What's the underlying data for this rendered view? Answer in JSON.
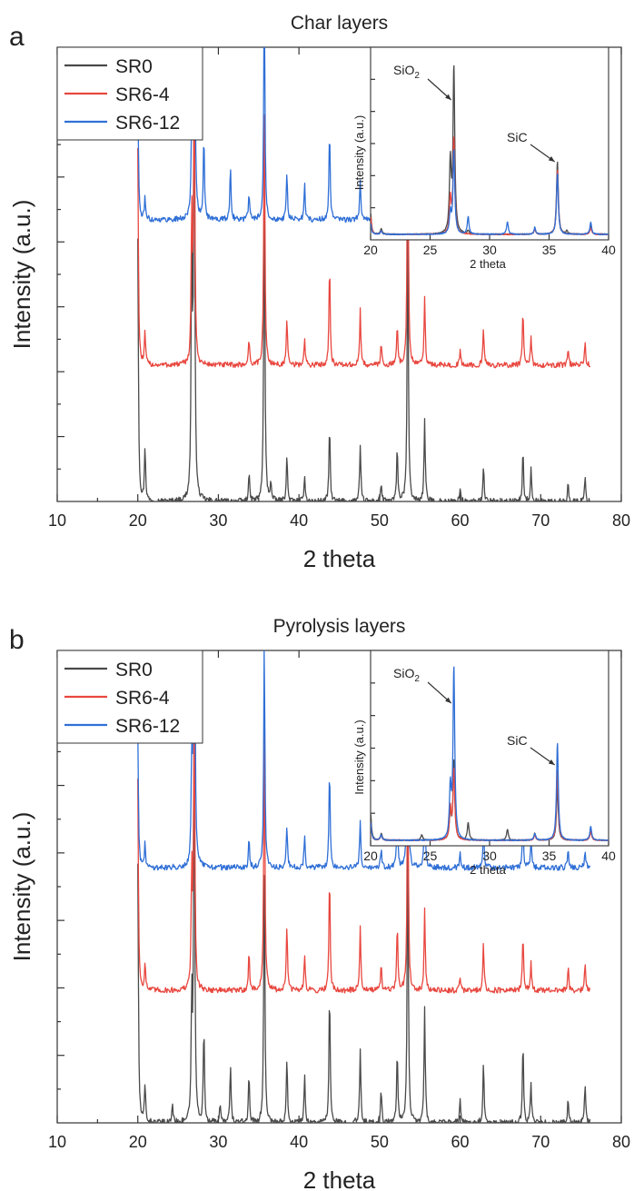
{
  "chart_data": [
    {
      "type": "line",
      "panel_label": "a",
      "title": "Char layers",
      "xlabel": "2 theta",
      "ylabel": "Intensity (a.u.)",
      "xlim": [
        10,
        80
      ],
      "x_ticks": [
        "10",
        "20",
        "30",
        "40",
        "50",
        "60",
        "70",
        "80"
      ],
      "y_ticks_labeled": false,
      "legend_position": "top-left",
      "series": [
        {
          "name": "SR0",
          "color": "#4a4a4a",
          "offset": 0.0,
          "peaks": [
            [
              20.0,
              0.58
            ],
            [
              20.9,
              0.12
            ],
            [
              26.7,
              0.6
            ],
            [
              27.0,
              0.95
            ],
            [
              33.8,
              0.06
            ],
            [
              35.7,
              0.72
            ],
            [
              36.5,
              0.04
            ],
            [
              38.5,
              0.1
            ],
            [
              40.7,
              0.06
            ],
            [
              43.8,
              0.17
            ],
            [
              47.6,
              0.12
            ],
            [
              50.2,
              0.04
            ],
            [
              52.2,
              0.12
            ],
            [
              53.5,
              0.62
            ],
            [
              55.6,
              0.18
            ],
            [
              60.0,
              0.03
            ],
            [
              62.9,
              0.08
            ],
            [
              67.8,
              0.11
            ],
            [
              68.8,
              0.07
            ],
            [
              73.4,
              0.04
            ],
            [
              75.5,
              0.05
            ]
          ]
        },
        {
          "name": "SR6-4",
          "color": "#e8473f",
          "offset": 0.3,
          "peaks": [
            [
              20.0,
              0.48
            ],
            [
              20.9,
              0.07
            ],
            [
              26.7,
              0.33
            ],
            [
              27.0,
              0.65
            ],
            [
              33.8,
              0.06
            ],
            [
              35.7,
              0.58
            ],
            [
              38.5,
              0.1
            ],
            [
              40.7,
              0.06
            ],
            [
              43.8,
              0.23
            ],
            [
              47.6,
              0.12
            ],
            [
              50.2,
              0.05
            ],
            [
              52.2,
              0.09
            ],
            [
              53.5,
              0.6
            ],
            [
              55.6,
              0.15
            ],
            [
              60.0,
              0.03
            ],
            [
              62.9,
              0.08
            ],
            [
              67.8,
              0.12
            ],
            [
              68.8,
              0.06
            ],
            [
              73.4,
              0.04
            ],
            [
              75.5,
              0.05
            ]
          ]
        },
        {
          "name": "SR6-12",
          "color": "#2f6fd6",
          "offset": 0.62,
          "peaks": [
            [
              20.0,
              0.3
            ],
            [
              20.9,
              0.05
            ],
            [
              26.7,
              0.2
            ],
            [
              27.0,
              0.85
            ],
            [
              28.2,
              0.19
            ],
            [
              31.5,
              0.12
            ],
            [
              33.8,
              0.06
            ],
            [
              35.7,
              0.52
            ],
            [
              38.5,
              0.1
            ],
            [
              40.7,
              0.08
            ],
            [
              43.8,
              0.2
            ],
            [
              47.6,
              0.09
            ],
            [
              50.2,
              0.05
            ],
            [
              52.2,
              0.1
            ],
            [
              53.5,
              0.52
            ],
            [
              55.6,
              0.16
            ],
            [
              60.0,
              0.04
            ],
            [
              62.9,
              0.09
            ],
            [
              67.8,
              0.1
            ],
            [
              68.8,
              0.06
            ],
            [
              73.4,
              0.03
            ],
            [
              75.5,
              0.05
            ]
          ]
        }
      ],
      "inset": {
        "xlabel": "2 theta",
        "ylabel": "Intensity (a.u.)",
        "xlim": [
          20,
          40
        ],
        "x_ticks": [
          "20",
          "25",
          "30",
          "35",
          "40"
        ],
        "annotations": [
          {
            "text": "SiO",
            "sub": "2",
            "target_x": 27.0
          },
          {
            "text": "SiC",
            "sub": "",
            "target_x": 35.7
          }
        ],
        "series": [
          {
            "name": "SR0",
            "color": "#4a4a4a",
            "peaks": [
              [
                20.0,
                0.12
              ],
              [
                20.9,
                0.03
              ],
              [
                26.7,
                0.4
              ],
              [
                27.0,
                0.95
              ],
              [
                28.2,
                0.02
              ],
              [
                33.8,
                0.03
              ],
              [
                35.7,
                0.42
              ],
              [
                36.5,
                0.02
              ],
              [
                38.5,
                0.05
              ]
            ]
          },
          {
            "name": "SR6-4",
            "color": "#e8473f",
            "peaks": [
              [
                20.0,
                0.1
              ],
              [
                20.9,
                0.02
              ],
              [
                26.7,
                0.2
              ],
              [
                27.0,
                0.55
              ],
              [
                33.8,
                0.03
              ],
              [
                35.7,
                0.37
              ],
              [
                38.5,
                0.04
              ]
            ]
          },
          {
            "name": "SR6-12",
            "color": "#2f6fd6",
            "peaks": [
              [
                20.0,
                0.06
              ],
              [
                20.9,
                0.02
              ],
              [
                26.7,
                0.12
              ],
              [
                27.0,
                0.48
              ],
              [
                28.2,
                0.1
              ],
              [
                31.5,
                0.07
              ],
              [
                33.8,
                0.04
              ],
              [
                35.7,
                0.35
              ],
              [
                38.5,
                0.07
              ]
            ]
          }
        ]
      }
    },
    {
      "type": "line",
      "panel_label": "b",
      "title": "Pyrolysis layers",
      "xlabel": "2 theta",
      "ylabel": "Intensity (a.u.)",
      "xlim": [
        10,
        80
      ],
      "x_ticks": [
        "10",
        "20",
        "30",
        "40",
        "50",
        "60",
        "70",
        "80"
      ],
      "y_ticks_labeled": false,
      "legend_position": "top-left",
      "series": [
        {
          "name": "SR0",
          "color": "#4a4a4a",
          "offset": 0.0,
          "peaks": [
            [
              20.0,
              0.55
            ],
            [
              20.9,
              0.08
            ],
            [
              24.3,
              0.04
            ],
            [
              26.7,
              0.25
            ],
            [
              27.0,
              0.8
            ],
            [
              28.2,
              0.2
            ],
            [
              30.2,
              0.04
            ],
            [
              31.5,
              0.12
            ],
            [
              33.8,
              0.1
            ],
            [
              35.7,
              0.55
            ],
            [
              38.5,
              0.14
            ],
            [
              40.7,
              0.1
            ],
            [
              43.8,
              0.28
            ],
            [
              47.6,
              0.15
            ],
            [
              50.2,
              0.07
            ],
            [
              52.2,
              0.15
            ],
            [
              53.5,
              0.62
            ],
            [
              55.6,
              0.24
            ],
            [
              60.0,
              0.05
            ],
            [
              62.9,
              0.13
            ],
            [
              67.8,
              0.17
            ],
            [
              68.8,
              0.08
            ],
            [
              73.4,
              0.05
            ],
            [
              75.5,
              0.08
            ]
          ]
        },
        {
          "name": "SR6-4",
          "color": "#e8473f",
          "offset": 0.28,
          "peaks": [
            [
              20.0,
              0.45
            ],
            [
              20.9,
              0.06
            ],
            [
              26.7,
              0.25
            ],
            [
              27.0,
              0.62
            ],
            [
              33.8,
              0.08
            ],
            [
              35.7,
              0.58
            ],
            [
              38.5,
              0.14
            ],
            [
              40.7,
              0.08
            ],
            [
              43.8,
              0.25
            ],
            [
              47.6,
              0.14
            ],
            [
              50.2,
              0.05
            ],
            [
              52.2,
              0.14
            ],
            [
              53.5,
              0.55
            ],
            [
              55.6,
              0.17
            ],
            [
              60.0,
              0.03
            ],
            [
              62.9,
              0.1
            ],
            [
              67.8,
              0.12
            ],
            [
              68.8,
              0.06
            ],
            [
              73.4,
              0.05
            ],
            [
              75.5,
              0.06
            ]
          ]
        },
        {
          "name": "SR6-12",
          "color": "#2f6fd6",
          "offset": 0.54,
          "peaks": [
            [
              20.0,
              0.3
            ],
            [
              20.9,
              0.05
            ],
            [
              26.7,
              0.21
            ],
            [
              27.0,
              0.95
            ],
            [
              33.8,
              0.06
            ],
            [
              35.7,
              0.48
            ],
            [
              38.5,
              0.09
            ],
            [
              40.7,
              0.07
            ],
            [
              43.8,
              0.21
            ],
            [
              47.6,
              0.1
            ],
            [
              50.2,
              0.04
            ],
            [
              52.2,
              0.12
            ],
            [
              53.5,
              0.45
            ],
            [
              55.6,
              0.15
            ],
            [
              60.0,
              0.03
            ],
            [
              62.9,
              0.09
            ],
            [
              67.8,
              0.1
            ],
            [
              68.8,
              0.06
            ],
            [
              73.4,
              0.04
            ],
            [
              75.5,
              0.04
            ]
          ]
        }
      ],
      "inset": {
        "xlabel": "2 theta",
        "ylabel": "Intensity (a.u.)",
        "xlim": [
          20,
          40
        ],
        "x_ticks": [
          "20",
          "25",
          "30",
          "35",
          "40"
        ],
        "annotations": [
          {
            "text": "SiO",
            "sub": "2",
            "target_x": 27.0
          },
          {
            "text": "SiC",
            "sub": "",
            "target_x": 35.7
          }
        ],
        "series": [
          {
            "name": "SR0",
            "color": "#4a4a4a",
            "peaks": [
              [
                20.0,
                0.15
              ],
              [
                20.9,
                0.04
              ],
              [
                24.3,
                0.03
              ],
              [
                26.7,
                0.15
              ],
              [
                27.0,
                0.45
              ],
              [
                28.2,
                0.1
              ],
              [
                31.5,
                0.06
              ],
              [
                33.8,
                0.04
              ],
              [
                35.7,
                0.3
              ],
              [
                38.5,
                0.07
              ]
            ]
          },
          {
            "name": "SR6-4",
            "color": "#e8473f",
            "peaks": [
              [
                20.0,
                0.1
              ],
              [
                20.9,
                0.03
              ],
              [
                26.7,
                0.18
              ],
              [
                27.0,
                0.4
              ],
              [
                33.8,
                0.03
              ],
              [
                35.7,
                0.4
              ],
              [
                38.5,
                0.05
              ]
            ]
          },
          {
            "name": "SR6-12",
            "color": "#2f6fd6",
            "peaks": [
              [
                20.0,
                0.1
              ],
              [
                20.9,
                0.03
              ],
              [
                26.7,
                0.28
              ],
              [
                27.0,
                0.97
              ],
              [
                33.8,
                0.04
              ],
              [
                35.7,
                0.55
              ],
              [
                38.5,
                0.08
              ]
            ]
          }
        ]
      }
    }
  ]
}
